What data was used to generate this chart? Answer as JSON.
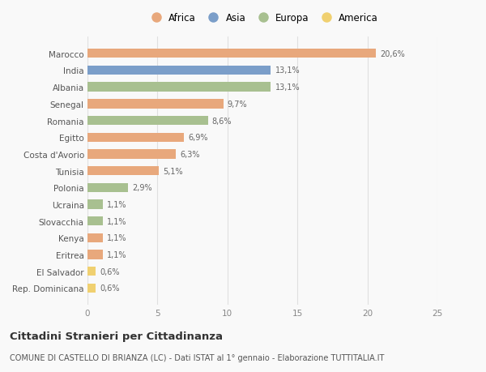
{
  "countries": [
    "Marocco",
    "India",
    "Albania",
    "Senegal",
    "Romania",
    "Egitto",
    "Costa d'Avorio",
    "Tunisia",
    "Polonia",
    "Ucraina",
    "Slovacchia",
    "Kenya",
    "Eritrea",
    "El Salvador",
    "Rep. Dominicana"
  ],
  "values": [
    20.6,
    13.1,
    13.1,
    9.7,
    8.6,
    6.9,
    6.3,
    5.1,
    2.9,
    1.1,
    1.1,
    1.1,
    1.1,
    0.6,
    0.6
  ],
  "labels": [
    "20,6%",
    "13,1%",
    "13,1%",
    "9,7%",
    "8,6%",
    "6,9%",
    "6,3%",
    "5,1%",
    "2,9%",
    "1,1%",
    "1,1%",
    "1,1%",
    "1,1%",
    "0,6%",
    "0,6%"
  ],
  "continents": [
    "Africa",
    "Asia",
    "Europa",
    "Africa",
    "Europa",
    "Africa",
    "Africa",
    "Africa",
    "Europa",
    "Europa",
    "Europa",
    "Africa",
    "Africa",
    "America",
    "America"
  ],
  "colors": {
    "Africa": "#E8A87C",
    "Asia": "#7B9EC9",
    "Europa": "#A8C090",
    "America": "#F0D070"
  },
  "xlim": [
    0,
    25
  ],
  "xticks": [
    0,
    5,
    10,
    15,
    20,
    25
  ],
  "title": "Cittadini Stranieri per Cittadinanza",
  "subtitle": "COMUNE DI CASTELLO DI BRIANZA (LC) - Dati ISTAT al 1° gennaio - Elaborazione TUTTITALIA.IT",
  "background_color": "#f9f9f9",
  "grid_color": "#e0e0e0",
  "legend_order": [
    "Africa",
    "Asia",
    "Europa",
    "America"
  ]
}
